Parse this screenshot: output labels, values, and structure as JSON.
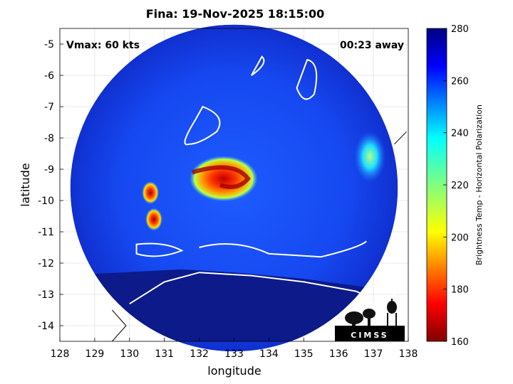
{
  "chart_data": {
    "type": "heatmap",
    "title": "Fina: 19-Nov-2025 18:15:00",
    "xlabel": "longitude",
    "ylabel": "latitude",
    "xlim": [
      128,
      138
    ],
    "ylim": [
      -14.5,
      -4.5
    ],
    "xticks": [
      "128",
      "129",
      "130",
      "131",
      "132",
      "133",
      "134",
      "135",
      "136",
      "137",
      "138"
    ],
    "yticks": [
      "-5",
      "-6",
      "-7",
      "-8",
      "-9",
      "-10",
      "-11",
      "-12",
      "-13",
      "-14"
    ],
    "annotations": {
      "vmax": "Vmax: 60 kts",
      "away": "00:23 away"
    },
    "grid": true,
    "colorbar": {
      "label": "Brightness Temp - Horizontal Polarization",
      "range": [
        160,
        280
      ],
      "ticks": [
        "280",
        "260",
        "240",
        "220",
        "200",
        "180",
        "160"
      ],
      "colormap": "jet_reversed"
    },
    "swath": {
      "center": [
        133,
        -9.6
      ],
      "radius_deg": 4.7
    },
    "storm_center": [
      132.6,
      -9.4
    ],
    "features": [
      {
        "kind": "core",
        "center": [
          132.7,
          -9.3
        ],
        "value": 180
      },
      {
        "kind": "band",
        "center": [
          130.7,
          -10.6
        ],
        "value": 185
      },
      {
        "kind": "band",
        "center": [
          130.6,
          -9.75
        ],
        "value": 200
      },
      {
        "kind": "cell",
        "center": [
          136.9,
          -8.6
        ],
        "value": 225
      }
    ],
    "logo": "CIMSS"
  }
}
